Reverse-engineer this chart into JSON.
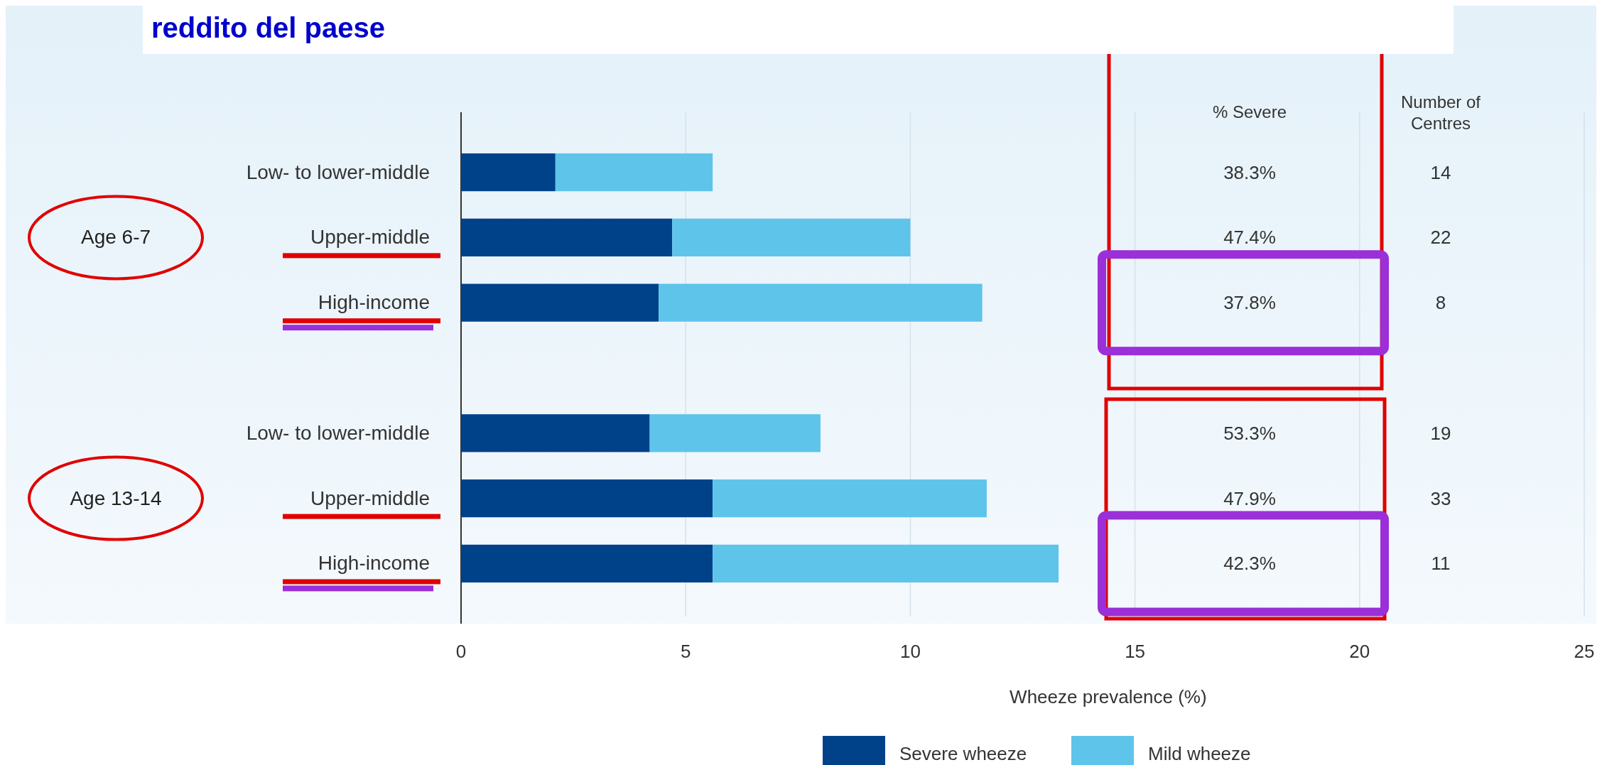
{
  "chart_data": {
    "type": "bar",
    "orientation": "horizontal",
    "stacked": true,
    "title": "reddito del paese",
    "categories": [
      "Low- to lower-middle",
      "Upper-middle",
      "High-income",
      null,
      "Low- to lower-middle",
      "Upper-middle",
      "High-income"
    ],
    "series": [
      {
        "name": "Severe wheeze",
        "color": "#00428a",
        "values": [
          2.1,
          4.7,
          4.4,
          null,
          4.2,
          5.6,
          5.6
        ]
      },
      {
        "name": "Mild wheeze",
        "color": "#5ec4ea",
        "values": [
          3.5,
          5.3,
          7.2,
          null,
          3.8,
          6.1,
          7.7
        ]
      }
    ],
    "xlim": [
      0,
      25
    ],
    "xticks": [
      0,
      5,
      10,
      15,
      20,
      25
    ],
    "xlabel": "Wheeze prevalence (%)",
    "grid": "x",
    "legend": "bottom",
    "annotations": [
      "Age 6-7",
      "Age 13-14",
      "% Severe",
      "Number of Centres",
      "38.3%",
      "47.4%",
      "37.8%",
      "53.3%",
      "47.9%",
      "42.3%",
      "14",
      "22",
      "8",
      "19",
      "33",
      "11"
    ]
  }
}
